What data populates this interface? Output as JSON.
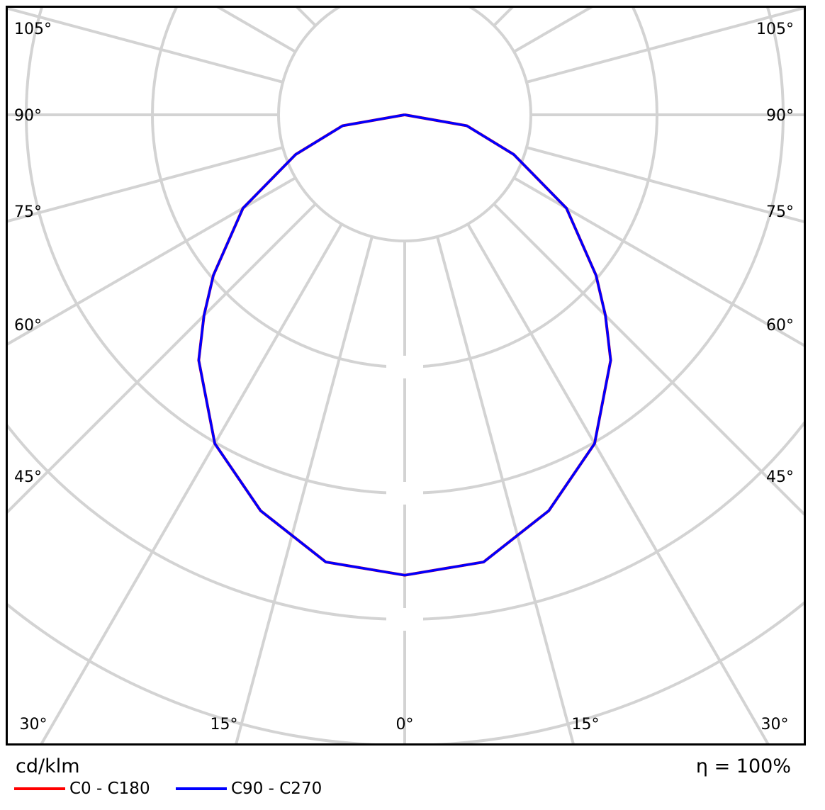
{
  "chart_data": {
    "type": "polar-line",
    "unit_label": "cd/klm",
    "efficiency_label": "η = 100%",
    "angle_tick_labels_left": [
      "105°",
      "90°",
      "75°",
      "60°",
      "45°"
    ],
    "angle_tick_labels_right": [
      "105°",
      "90°",
      "75°",
      "60°",
      "45°"
    ],
    "angle_tick_labels_bottom": [
      "30°",
      "15°",
      "0°",
      "15°",
      "30°"
    ],
    "radial_grid_step_deg": 15,
    "radial_ring_labels_visible": false,
    "grid": true,
    "legend_placement": "bottom-left",
    "r_units": "grid rings (ring values not printed)",
    "angles": [
      0,
      10,
      20,
      30,
      40,
      45,
      50,
      60,
      70,
      80,
      90
    ],
    "series": [
      {
        "name": "C0 - C180",
        "color": "#ff0000",
        "r": [
          3.65,
          3.6,
          3.34,
          3.01,
          2.54,
          2.25,
          1.98,
          1.48,
          0.92,
          0.5,
          0
        ]
      },
      {
        "name": "C90 - C270",
        "color": "#0000ff",
        "r": [
          3.65,
          3.6,
          3.34,
          3.01,
          2.54,
          2.25,
          1.98,
          1.48,
          0.92,
          0.5,
          0
        ]
      }
    ]
  }
}
